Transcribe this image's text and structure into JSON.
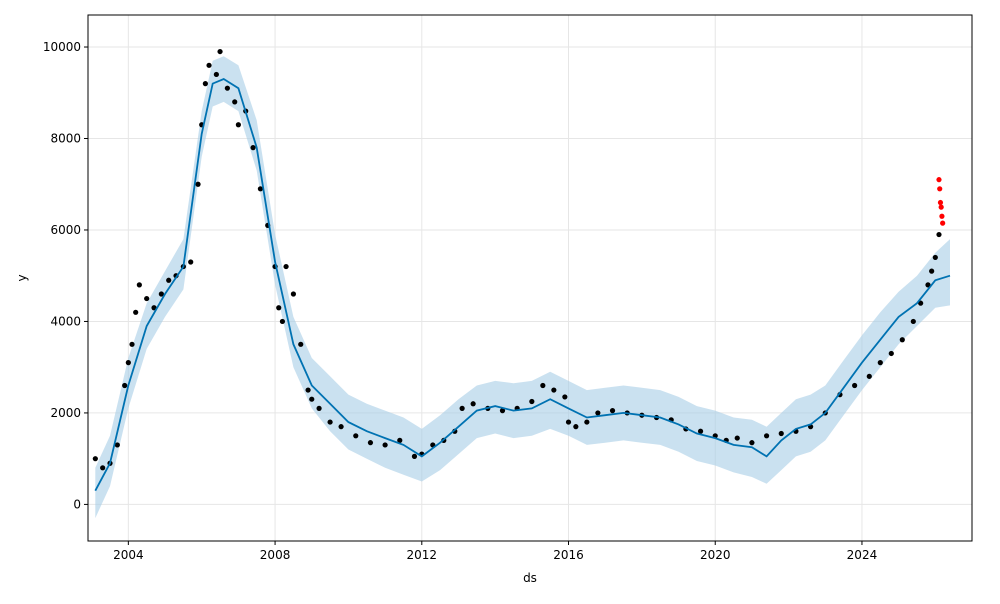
{
  "chart_data": {
    "type": "line",
    "xlabel": "ds",
    "ylabel": "y",
    "xlim": [
      2002.9,
      2027.0
    ],
    "ylim": [
      -800,
      10700
    ],
    "x_ticks": [
      2004,
      2008,
      2012,
      2016,
      2020,
      2024
    ],
    "y_ticks": [
      0,
      2000,
      4000,
      6000,
      8000,
      10000
    ],
    "grid": true,
    "colors": {
      "observed": "#000000",
      "forecast_line": "#0072b2",
      "uncertainty_band": "#a6cde6",
      "recent_actuals": "#ff0000"
    },
    "series": [
      {
        "kind": "observed-points",
        "x": [
          2003.1,
          2003.3,
          2003.5,
          2003.7,
          2003.9,
          2004.0,
          2004.1,
          2004.2,
          2004.3,
          2004.5,
          2004.7,
          2004.9,
          2005.1,
          2005.3,
          2005.5,
          2005.7,
          2005.9,
          2006.0,
          2006.1,
          2006.2,
          2006.4,
          2006.5,
          2006.7,
          2006.9,
          2007.0,
          2007.2,
          2007.4,
          2007.6,
          2007.8,
          2008.0,
          2008.1,
          2008.2,
          2008.3,
          2008.5,
          2008.7,
          2008.9,
          2009.0,
          2009.2,
          2009.5,
          2009.8,
          2010.2,
          2010.6,
          2011.0,
          2011.4,
          2011.8,
          2012.0,
          2012.3,
          2012.6,
          2012.9,
          2013.1,
          2013.4,
          2013.8,
          2014.2,
          2014.6,
          2015.0,
          2015.3,
          2015.6,
          2015.9,
          2016.0,
          2016.2,
          2016.5,
          2016.8,
          2017.2,
          2017.6,
          2018.0,
          2018.4,
          2018.8,
          2019.2,
          2019.6,
          2020.0,
          2020.3,
          2020.6,
          2021.0,
          2021.4,
          2021.8,
          2022.2,
          2022.6,
          2023.0,
          2023.4,
          2023.8,
          2024.2,
          2024.5,
          2024.8,
          2025.1,
          2025.4,
          2025.6,
          2025.8,
          2025.9,
          2026.0,
          2026.1
        ],
        "y": [
          1000,
          800,
          900,
          1300,
          2600,
          3100,
          3500,
          4200,
          4800,
          4500,
          4300,
          4600,
          4900,
          5000,
          5200,
          5300,
          7000,
          8300,
          9200,
          9600,
          9400,
          9900,
          9100,
          8800,
          8300,
          8600,
          7800,
          6900,
          6100,
          5200,
          4300,
          4000,
          5200,
          4600,
          3500,
          2500,
          2300,
          2100,
          1800,
          1700,
          1500,
          1350,
          1300,
          1400,
          1050,
          1100,
          1300,
          1400,
          1600,
          2100,
          2200,
          2100,
          2050,
          2100,
          2250,
          2600,
          2500,
          2350,
          1800,
          1700,
          1800,
          2000,
          2050,
          2000,
          1950,
          1900,
          1850,
          1650,
          1600,
          1500,
          1400,
          1450,
          1350,
          1500,
          1550,
          1600,
          1700,
          2000,
          2400,
          2600,
          2800,
          3100,
          3300,
          3600,
          4000,
          4400,
          4800,
          5100,
          5400,
          5900
        ]
      },
      {
        "kind": "recent-actuals",
        "x": [
          2026.1,
          2026.12,
          2026.14,
          2026.16,
          2026.18,
          2026.2
        ],
        "y": [
          7100,
          6900,
          6600,
          6500,
          6300,
          6150
        ]
      },
      {
        "kind": "forecast",
        "x": [
          2003.1,
          2003.5,
          2004.0,
          2004.5,
          2005.0,
          2005.5,
          2006.0,
          2006.3,
          2006.6,
          2007.0,
          2007.5,
          2008.0,
          2008.5,
          2009.0,
          2009.5,
          2010.0,
          2010.5,
          2011.0,
          2011.5,
          2012.0,
          2012.5,
          2013.0,
          2013.5,
          2014.0,
          2014.5,
          2015.0,
          2015.5,
          2016.0,
          2016.5,
          2017.0,
          2017.5,
          2018.0,
          2018.5,
          2019.0,
          2019.5,
          2020.0,
          2020.5,
          2021.0,
          2021.4,
          2021.8,
          2022.2,
          2022.6,
          2023.0,
          2023.5,
          2024.0,
          2024.5,
          2025.0,
          2025.5,
          2026.0,
          2026.4
        ],
        "y": [
          300,
          900,
          2600,
          3900,
          4600,
          5200,
          8100,
          9200,
          9300,
          9100,
          7800,
          5300,
          3500,
          2600,
          2200,
          1800,
          1600,
          1450,
          1300,
          1050,
          1350,
          1700,
          2050,
          2150,
          2050,
          2100,
          2300,
          2100,
          1900,
          1950,
          2000,
          1950,
          1900,
          1750,
          1550,
          1450,
          1300,
          1250,
          1050,
          1400,
          1650,
          1750,
          2000,
          2550,
          3100,
          3600,
          4100,
          4400,
          4900,
          5000
        ]
      },
      {
        "kind": "uncertainty-lower",
        "x": [
          2003.1,
          2003.5,
          2004.0,
          2004.5,
          2005.0,
          2005.5,
          2006.0,
          2006.3,
          2006.6,
          2007.0,
          2007.5,
          2008.0,
          2008.5,
          2009.0,
          2009.5,
          2010.0,
          2010.5,
          2011.0,
          2011.5,
          2012.0,
          2012.5,
          2013.0,
          2013.5,
          2014.0,
          2014.5,
          2015.0,
          2015.5,
          2016.0,
          2016.5,
          2017.0,
          2017.5,
          2018.0,
          2018.5,
          2019.0,
          2019.5,
          2020.0,
          2020.5,
          2021.0,
          2021.4,
          2021.8,
          2022.2,
          2022.6,
          2023.0,
          2023.5,
          2024.0,
          2024.5,
          2025.0,
          2025.5,
          2026.0,
          2026.4
        ],
        "y": [
          -300,
          400,
          2100,
          3400,
          4100,
          4700,
          7600,
          8700,
          8800,
          8600,
          7300,
          4800,
          3000,
          2100,
          1600,
          1200,
          1000,
          800,
          650,
          500,
          750,
          1100,
          1450,
          1550,
          1450,
          1500,
          1650,
          1500,
          1300,
          1350,
          1400,
          1350,
          1300,
          1150,
          950,
          850,
          700,
          600,
          450,
          750,
          1050,
          1150,
          1400,
          1950,
          2500,
          3000,
          3500,
          3900,
          4300,
          4350
        ]
      },
      {
        "kind": "uncertainty-upper",
        "x": [
          2003.1,
          2003.5,
          2004.0,
          2004.5,
          2005.0,
          2005.5,
          2006.0,
          2006.3,
          2006.6,
          2007.0,
          2007.5,
          2008.0,
          2008.5,
          2009.0,
          2009.5,
          2010.0,
          2010.5,
          2011.0,
          2011.5,
          2012.0,
          2012.5,
          2013.0,
          2013.5,
          2014.0,
          2014.5,
          2015.0,
          2015.5,
          2016.0,
          2016.5,
          2017.0,
          2017.5,
          2018.0,
          2018.5,
          2019.0,
          2019.5,
          2020.0,
          2020.5,
          2021.0,
          2021.4,
          2021.8,
          2022.2,
          2022.6,
          2023.0,
          2023.5,
          2024.0,
          2024.5,
          2025.0,
          2025.5,
          2026.0,
          2026.4
        ],
        "y": [
          800,
          1500,
          3200,
          4400,
          5100,
          5800,
          8600,
          9700,
          9800,
          9600,
          8400,
          5900,
          4100,
          3200,
          2800,
          2400,
          2200,
          2050,
          1900,
          1650,
          1950,
          2300,
          2600,
          2700,
          2650,
          2700,
          2900,
          2700,
          2500,
          2550,
          2600,
          2550,
          2500,
          2350,
          2150,
          2050,
          1900,
          1850,
          1700,
          2000,
          2300,
          2400,
          2600,
          3150,
          3700,
          4200,
          4650,
          5000,
          5500,
          5800
        ]
      }
    ]
  }
}
